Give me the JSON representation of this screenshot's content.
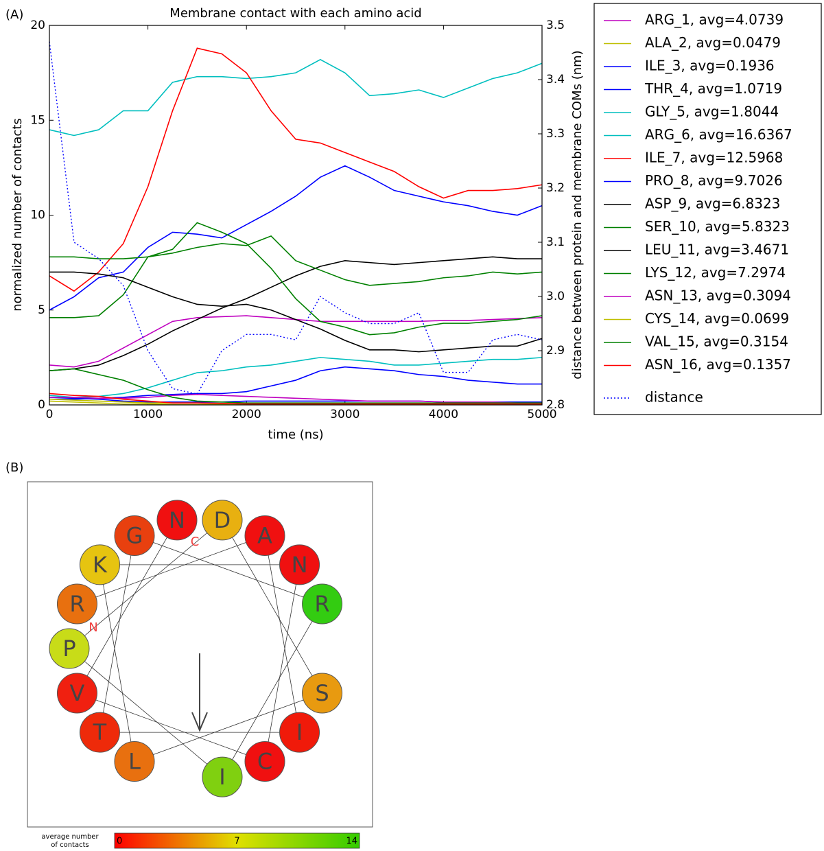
{
  "panel_a_label": "(A)",
  "panel_b_label": "(B)",
  "chart_data": {
    "type": "line",
    "title": "Membrane contact with each amino acid",
    "x_label": "time (ns)",
    "y_label": "normalized number of contacts",
    "y2_label": "distance between protein and membrane COMs (nm)",
    "xlim": [
      0,
      5000
    ],
    "xticks": [
      0,
      1000,
      2000,
      3000,
      4000,
      5000
    ],
    "ylim": [
      0,
      20
    ],
    "yticks": [
      0,
      5,
      10,
      15,
      20
    ],
    "y2lim": [
      2.8,
      3.5
    ],
    "y2ticks": [
      2.8,
      2.9,
      {
        "value": 3,
        "label": "3.0"
      },
      3.1,
      3.2,
      3.3,
      3.4,
      3.5
    ],
    "x": [
      0,
      250,
      500,
      750,
      1000,
      1250,
      1500,
      1750,
      2000,
      2250,
      2500,
      2750,
      3000,
      3250,
      3500,
      3750,
      4000,
      4250,
      4500,
      4750,
      5000
    ],
    "series": [
      {
        "name": "ARG_1, avg=4.0739",
        "color": "#bf00bf",
        "values": [
          2.1,
          2.0,
          2.3,
          3.0,
          3.7,
          4.4,
          4.6,
          4.65,
          4.7,
          4.6,
          4.5,
          4.4,
          4.4,
          4.4,
          4.4,
          4.4,
          4.45,
          4.45,
          4.5,
          4.55,
          4.6
        ]
      },
      {
        "name": "ALA_2, avg=0.0479",
        "color": "#bfbf00",
        "values": [
          0.2,
          0.15,
          0.1,
          0.05,
          0.05,
          0.02,
          0.02,
          0.02,
          0.02,
          0.02,
          0.02,
          0.02,
          0.02,
          0.02,
          0.02,
          0.02,
          0.02,
          0.02,
          0.02,
          0.02,
          0.02
        ]
      },
      {
        "name": "ILE_3, avg=0.1936",
        "color": "#0000ff",
        "values": [
          0.4,
          0.35,
          0.3,
          0.2,
          0.15,
          0.15,
          0.15,
          0.15,
          0.2,
          0.2,
          0.2,
          0.2,
          0.2,
          0.2,
          0.2,
          0.2,
          0.15,
          0.15,
          0.15,
          0.15,
          0.15
        ]
      },
      {
        "name": "THR_4, avg=1.0719",
        "color": "#0000ff",
        "values": [
          0.3,
          0.3,
          0.35,
          0.4,
          0.5,
          0.55,
          0.6,
          0.6,
          0.7,
          1.0,
          1.3,
          1.8,
          2.0,
          1.9,
          1.8,
          1.6,
          1.5,
          1.3,
          1.2,
          1.1,
          1.1
        ]
      },
      {
        "name": "GLY_5, avg=1.8044",
        "color": "#00bfbf",
        "values": [
          0.5,
          0.4,
          0.45,
          0.6,
          0.9,
          1.3,
          1.7,
          1.8,
          2.0,
          2.1,
          2.3,
          2.5,
          2.4,
          2.3,
          2.1,
          2.1,
          2.2,
          2.3,
          2.4,
          2.4,
          2.5
        ]
      },
      {
        "name": "ARG_6, avg=16.6367",
        "color": "#00bfbf",
        "values": [
          14.5,
          14.2,
          14.5,
          15.5,
          15.5,
          17.0,
          17.3,
          17.3,
          17.2,
          17.3,
          17.5,
          18.2,
          17.5,
          16.3,
          16.4,
          16.6,
          16.2,
          16.7,
          17.2,
          17.5,
          18.0
        ]
      },
      {
        "name": "ILE_7, avg=12.5968",
        "color": "#ff0000",
        "values": [
          6.8,
          6.0,
          7.0,
          8.5,
          11.5,
          15.5,
          18.8,
          18.5,
          17.5,
          15.5,
          14.0,
          13.8,
          13.3,
          12.8,
          12.3,
          11.5,
          10.9,
          11.3,
          11.3,
          11.4,
          11.6
        ]
      },
      {
        "name": "PRO_8, avg=9.7026",
        "color": "#0000ff",
        "values": [
          5.0,
          5.7,
          6.7,
          7.0,
          8.3,
          9.1,
          9.0,
          8.8,
          9.5,
          10.2,
          11.0,
          12.0,
          12.6,
          12.0,
          11.3,
          11.0,
          10.7,
          10.5,
          10.2,
          10.0,
          10.5
        ]
      },
      {
        "name": "ASP_9, avg=6.8323",
        "color": "#000000",
        "values": [
          1.8,
          1.9,
          2.1,
          2.6,
          3.2,
          3.9,
          4.5,
          5.1,
          5.6,
          6.2,
          6.8,
          7.3,
          7.6,
          7.5,
          7.4,
          7.5,
          7.6,
          7.7,
          7.8,
          7.7,
          7.7
        ]
      },
      {
        "name": "SER_10, avg=5.8323",
        "color": "#008000",
        "values": [
          4.6,
          4.6,
          4.7,
          5.8,
          7.8,
          8.2,
          9.6,
          9.1,
          8.5,
          7.2,
          5.6,
          4.4,
          4.1,
          3.7,
          3.8,
          4.1,
          4.3,
          4.3,
          4.4,
          4.5,
          4.7
        ]
      },
      {
        "name": "LEU_11, avg=3.4671",
        "color": "#000000",
        "values": [
          7.0,
          7.0,
          6.9,
          6.7,
          6.2,
          5.7,
          5.3,
          5.2,
          5.3,
          5.0,
          4.5,
          4.0,
          3.4,
          2.9,
          2.9,
          2.8,
          2.9,
          3.0,
          3.1,
          3.1,
          3.5
        ]
      },
      {
        "name": "LYS_12, avg=7.2974",
        "color": "#008000",
        "values": [
          7.8,
          7.8,
          7.7,
          7.7,
          7.8,
          8.0,
          8.3,
          8.5,
          8.4,
          8.9,
          7.6,
          7.1,
          6.6,
          6.3,
          6.4,
          6.5,
          6.7,
          6.8,
          7.0,
          6.9,
          7.0
        ]
      },
      {
        "name": "ASN_13, avg=0.3094",
        "color": "#bf00bf",
        "values": [
          0.4,
          0.4,
          0.35,
          0.35,
          0.4,
          0.5,
          0.55,
          0.5,
          0.45,
          0.4,
          0.35,
          0.3,
          0.25,
          0.2,
          0.2,
          0.2,
          0.15,
          0.15,
          0.15,
          0.1,
          0.1
        ]
      },
      {
        "name": "CYS_14, avg=0.0699",
        "color": "#bfbf00",
        "values": [
          0.3,
          0.25,
          0.2,
          0.15,
          0.1,
          0.1,
          0.1,
          0.08,
          0.05,
          0.05,
          0.05,
          0.05,
          0.05,
          0.05,
          0.05,
          0.05,
          0.05,
          0.05,
          0.05,
          0.05,
          0.05
        ]
      },
      {
        "name": "VAL_15, avg=0.3154",
        "color": "#008000",
        "values": [
          1.8,
          1.9,
          1.6,
          1.3,
          0.8,
          0.4,
          0.2,
          0.15,
          0.1,
          0.1,
          0.1,
          0.1,
          0.1,
          0.1,
          0.1,
          0.1,
          0.1,
          0.1,
          0.1,
          0.1,
          0.1
        ]
      },
      {
        "name": "ASN_16, avg=0.1357",
        "color": "#ff0000",
        "values": [
          0.6,
          0.5,
          0.45,
          0.3,
          0.2,
          0.1,
          0.1,
          0.08,
          0.05,
          0.05,
          0.05,
          0.05,
          0.05,
          0.05,
          0.05,
          0.05,
          0.05,
          0.05,
          0.05,
          0.05,
          0.05
        ]
      },
      {
        "name": "distance",
        "color": "#0000ff",
        "style": "dotted",
        "axis": "y2",
        "values": [
          3.47,
          3.1,
          3.07,
          3.02,
          2.9,
          2.83,
          2.82,
          2.9,
          2.93,
          2.93,
          2.92,
          3.0,
          2.97,
          2.95,
          2.95,
          2.97,
          2.86,
          2.86,
          2.92,
          2.93,
          2.92
        ]
      }
    ]
  },
  "helical_wheel": {
    "n_label": "N",
    "c_label": "C",
    "residues": [
      {
        "letter": "R",
        "color": "#e8700f"
      },
      {
        "letter": "A",
        "color": "#f01010"
      },
      {
        "letter": "I",
        "color": "#f01a0a"
      },
      {
        "letter": "T",
        "color": "#ee2a0a"
      },
      {
        "letter": "G",
        "color": "#e8400f"
      },
      {
        "letter": "R",
        "color": "#33cc11"
      },
      {
        "letter": "I",
        "color": "#80d010"
      },
      {
        "letter": "P",
        "color": "#c8dc18"
      },
      {
        "letter": "D",
        "color": "#e8b010"
      },
      {
        "letter": "S",
        "color": "#e89a10"
      },
      {
        "letter": "L",
        "color": "#e8700f"
      },
      {
        "letter": "K",
        "color": "#e6c410"
      },
      {
        "letter": "N",
        "color": "#f01010"
      },
      {
        "letter": "C",
        "color": "#f01010"
      },
      {
        "letter": "V",
        "color": "#f02010"
      },
      {
        "letter": "N",
        "color": "#f01010"
      }
    ],
    "colorbar": {
      "label_lines": [
        "average number",
        "of contacts"
      ],
      "lim": [
        0,
        14
      ],
      "ticks": [
        0,
        7,
        14
      ],
      "colors": [
        "#ff0000",
        "#e0e000",
        "#33cc00"
      ]
    }
  }
}
